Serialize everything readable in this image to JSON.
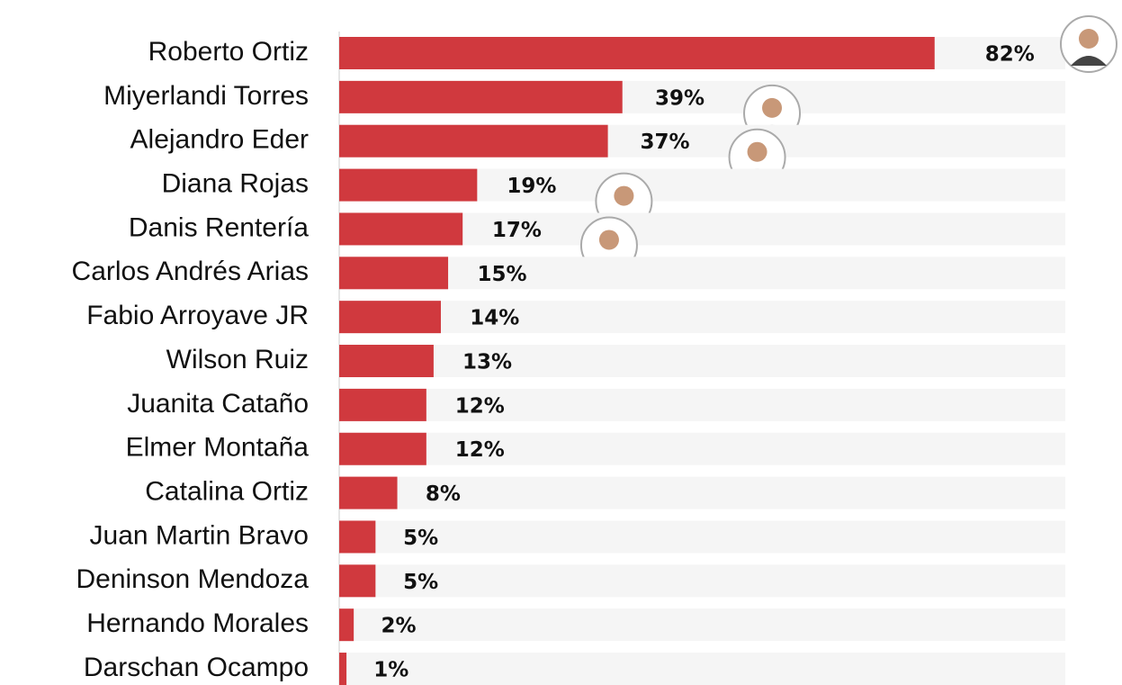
{
  "chart_data": {
    "type": "bar",
    "orientation": "horizontal",
    "categories": [
      "Roberto Ortiz",
      "Miyerlandi Torres",
      "Alejandro Eder",
      "Diana Rojas",
      "Danis Rentería",
      "Carlos Andrés Arias",
      "Fabio Arroyave JR",
      "Wilson Ruiz",
      "Juanita Cataño",
      "Elmer Montaña",
      "Catalina Ortiz",
      "Juan Martin Bravo",
      "Deninson Mendoza",
      "Hernando Morales",
      "Darschan Ocampo"
    ],
    "values": [
      82,
      39,
      37,
      19,
      17,
      15,
      14,
      13,
      12,
      12,
      8,
      5,
      5,
      2,
      1
    ],
    "value_labels": [
      "82%",
      "39%",
      "37%",
      "19%",
      "17%",
      "15%",
      "14%",
      "13%",
      "12%",
      "12%",
      "8%",
      "5%",
      "5%",
      "2%",
      "1%"
    ],
    "color": "#d0393e",
    "track_color": "#f5f5f5",
    "xlim": [
      0,
      100
    ]
  }
}
